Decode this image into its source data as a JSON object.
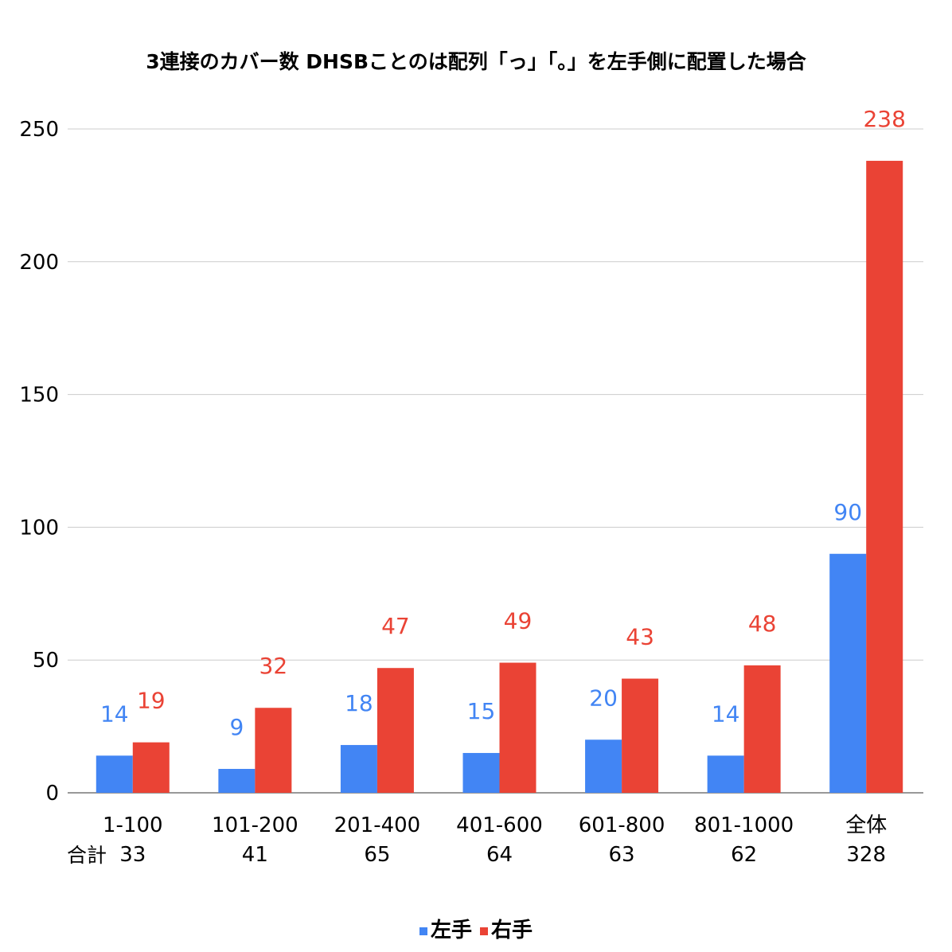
{
  "chart_data": {
    "type": "bar",
    "title": "3連接のカバー数 DHSBことのは配列「っ」「。」を左手側に配置した場合",
    "categories": [
      "1-100",
      "101-200",
      "201-400",
      "401-600",
      "601-800",
      "801-1000",
      "全体"
    ],
    "totals_label": "合計",
    "totals": [
      "33",
      "41",
      "65",
      "64",
      "63",
      "62",
      "328"
    ],
    "series": [
      {
        "name": "左手",
        "color": "#4285f4",
        "values": [
          14,
          9,
          18,
          15,
          20,
          14,
          90
        ]
      },
      {
        "name": "右手",
        "color": "#ea4335",
        "values": [
          19,
          32,
          47,
          49,
          43,
          48,
          238
        ]
      }
    ],
    "ylim": [
      0,
      250
    ],
    "yticks": [
      0,
      50,
      100,
      150,
      200,
      250
    ],
    "grid": true,
    "legend_position": "bottom"
  }
}
